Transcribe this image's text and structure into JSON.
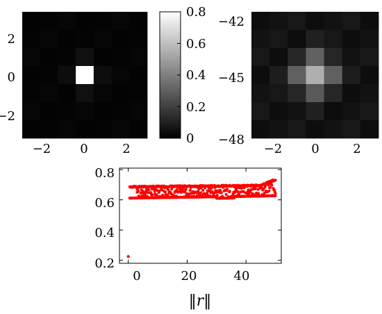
{
  "chart_data": [
    {
      "type": "heatmap",
      "title": "",
      "x_ticks": [
        "−2",
        "0",
        "2"
      ],
      "y_ticks": [
        "2",
        "0",
        "−2"
      ],
      "xlim": [
        -3,
        3
      ],
      "ylim": [
        -3,
        3
      ],
      "grid": false,
      "colormap": "gray",
      "background_color": "#000000",
      "cells": [
        {
          "x": 0,
          "y": 0,
          "value": 0.8
        },
        {
          "x": 0,
          "y": 1,
          "value": 0.05
        },
        {
          "x": 0,
          "y": -1,
          "value": 0.05
        },
        {
          "x": -1,
          "y": 0,
          "value": 0.04
        },
        {
          "x": 1,
          "y": 0,
          "value": 0.04
        }
      ],
      "baseline_value": 0.01
    },
    {
      "type": "colorbar",
      "ticks": [
        "0.8",
        "0.6",
        "0.4",
        "0.2",
        "0"
      ],
      "tick_values": [
        0.8,
        0.6,
        0.4,
        0.2,
        0
      ],
      "range": [
        0,
        0.8
      ]
    },
    {
      "type": "heatmap",
      "title": "",
      "x_ticks": [
        "−2",
        "0",
        "2"
      ],
      "y_ticks": [
        "−42",
        "−45",
        "−48"
      ],
      "xlim": [
        -3,
        3
      ],
      "ylim": [
        -48,
        -42
      ],
      "grid": false,
      "colormap": "gray",
      "background_color": "#000000",
      "cells": [
        {
          "x": 0,
          "y": -45,
          "value": 0.55
        },
        {
          "x": -1,
          "y": -45,
          "value": 0.3
        },
        {
          "x": 1,
          "y": -45,
          "value": 0.3
        },
        {
          "x": 0,
          "y": -44,
          "value": 0.3
        },
        {
          "x": 0,
          "y": -46,
          "value": 0.28
        },
        {
          "x": -1,
          "y": -44,
          "value": 0.12
        },
        {
          "x": 1,
          "y": -44,
          "value": 0.12
        },
        {
          "x": -1,
          "y": -46,
          "value": 0.12
        },
        {
          "x": 1,
          "y": -46,
          "value": 0.12
        },
        {
          "x": 0,
          "y": -43,
          "value": 0.1
        },
        {
          "x": 0,
          "y": -47,
          "value": 0.1
        },
        {
          "x": -2,
          "y": -45,
          "value": 0.09
        },
        {
          "x": 2,
          "y": -45,
          "value": 0.09
        }
      ],
      "baseline_value": 0.04
    },
    {
      "type": "scatter",
      "title": "",
      "xlabel": "‖r‖",
      "ylabel": "",
      "xlim": [
        -3,
        52
      ],
      "ylim": [
        0.18,
        0.81
      ],
      "x_ticks": [
        "0",
        "20",
        "40"
      ],
      "x_tick_values": [
        0,
        20,
        40
      ],
      "y_ticks": [
        "0.8",
        "0.6",
        "0.4",
        "0.2"
      ],
      "y_tick_values": [
        0.8,
        0.6,
        0.4,
        0.2
      ],
      "grid": false,
      "color": "#ff0000",
      "outlier": {
        "x": 0,
        "y": 0.225
      },
      "band": {
        "x_from": 0.5,
        "x_to": 50,
        "lower": 0.61,
        "upper": 0.69,
        "upper_end": 0.73
      }
    }
  ]
}
